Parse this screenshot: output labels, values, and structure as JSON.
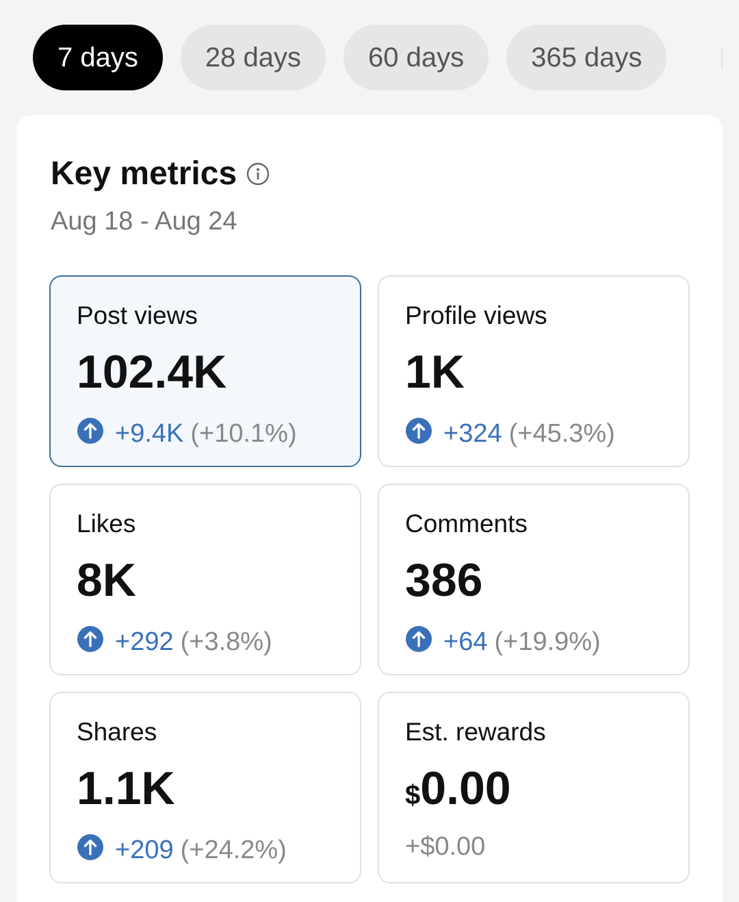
{
  "ranges": [
    {
      "label": "7 days",
      "active": true
    },
    {
      "label": "28 days",
      "active": false
    },
    {
      "label": "60 days",
      "active": false
    },
    {
      "label": "365 days",
      "active": false
    }
  ],
  "key_metrics": {
    "title": "Key metrics",
    "date_range": "Aug 18 - Aug 24",
    "metrics": [
      {
        "label": "Post views",
        "value": "102.4K",
        "delta": "+9.4K",
        "pct": "(+10.1%)",
        "selected": true
      },
      {
        "label": "Profile views",
        "value": "1K",
        "delta": "+324",
        "pct": "(+45.3%)",
        "selected": false
      },
      {
        "label": "Likes",
        "value": "8K",
        "delta": "+292",
        "pct": "(+3.8%)",
        "selected": false
      },
      {
        "label": "Comments",
        "value": "386",
        "delta": "+64",
        "pct": "(+19.9%)",
        "selected": false
      },
      {
        "label": "Shares",
        "value": "1.1K",
        "delta": "+209",
        "pct": "(+24.2%)",
        "selected": false
      },
      {
        "label": "Est. rewards",
        "currency": "$",
        "value": "0.00",
        "change": "+$0.00",
        "selected": false
      }
    ]
  },
  "colors": {
    "accent_blue": "#3a70b8",
    "active_pill": "#000000",
    "selected_border": "#3f6f9a"
  },
  "icons": {
    "info": "info-icon",
    "trend": "arrow-up-circle-icon"
  }
}
